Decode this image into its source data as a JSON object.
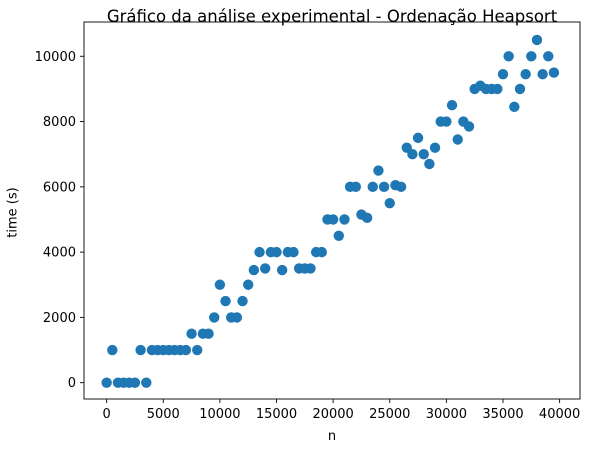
{
  "chart_data": {
    "type": "scatter",
    "title": "Gráfico da análise experimental - Ordenação Heapsort",
    "xlabel": "n",
    "ylabel": "time (s)",
    "xlim": [
      -2000,
      41800
    ],
    "ylim": [
      -500,
      11050
    ],
    "xticks": [
      0,
      5000,
      10000,
      15000,
      20000,
      25000,
      30000,
      35000,
      40000
    ],
    "yticks": [
      0,
      2000,
      4000,
      6000,
      8000,
      10000
    ],
    "grid": false,
    "color": "#1f77b4",
    "points": [
      [
        0,
        0
      ],
      [
        500,
        1000
      ],
      [
        1000,
        0
      ],
      [
        1500,
        0
      ],
      [
        2000,
        0
      ],
      [
        2500,
        0
      ],
      [
        3000,
        1000
      ],
      [
        3500,
        0
      ],
      [
        4000,
        1000
      ],
      [
        4500,
        1000
      ],
      [
        5000,
        1000
      ],
      [
        5500,
        1000
      ],
      [
        6000,
        1000
      ],
      [
        6500,
        1000
      ],
      [
        7000,
        1000
      ],
      [
        7500,
        1500
      ],
      [
        8000,
        1000
      ],
      [
        8500,
        1500
      ],
      [
        9000,
        1500
      ],
      [
        9500,
        2000
      ],
      [
        10000,
        3000
      ],
      [
        10500,
        2500
      ],
      [
        11000,
        2000
      ],
      [
        11500,
        2000
      ],
      [
        12000,
        2500
      ],
      [
        12500,
        3000
      ],
      [
        13000,
        3450
      ],
      [
        13500,
        4000
      ],
      [
        14000,
        3500
      ],
      [
        14500,
        4000
      ],
      [
        15000,
        4000
      ],
      [
        15500,
        3450
      ],
      [
        16000,
        4000
      ],
      [
        16500,
        4000
      ],
      [
        17000,
        3500
      ],
      [
        17500,
        3500
      ],
      [
        18000,
        3500
      ],
      [
        18500,
        4000
      ],
      [
        19000,
        4000
      ],
      [
        19500,
        5000
      ],
      [
        20000,
        5000
      ],
      [
        20500,
        4500
      ],
      [
        21000,
        5000
      ],
      [
        21500,
        6000
      ],
      [
        22000,
        6000
      ],
      [
        22500,
        5150
      ],
      [
        23000,
        5050
      ],
      [
        23500,
        6000
      ],
      [
        24000,
        6500
      ],
      [
        24500,
        6000
      ],
      [
        25000,
        5500
      ],
      [
        25500,
        6050
      ],
      [
        26000,
        6000
      ],
      [
        26500,
        7200
      ],
      [
        27000,
        7000
      ],
      [
        27500,
        7500
      ],
      [
        28000,
        7000
      ],
      [
        28500,
        6700
      ],
      [
        29000,
        7200
      ],
      [
        29500,
        8000
      ],
      [
        30000,
        8000
      ],
      [
        30500,
        8500
      ],
      [
        31000,
        7450
      ],
      [
        31500,
        8000
      ],
      [
        32000,
        7850
      ],
      [
        32500,
        9000
      ],
      [
        33000,
        9100
      ],
      [
        33500,
        9000
      ],
      [
        34000,
        9000
      ],
      [
        34500,
        9000
      ],
      [
        35000,
        9450
      ],
      [
        35500,
        10000
      ],
      [
        36000,
        8450
      ],
      [
        36500,
        9000
      ],
      [
        37000,
        9450
      ],
      [
        37500,
        10000
      ],
      [
        38000,
        10500
      ],
      [
        38500,
        9450
      ],
      [
        39000,
        10000
      ],
      [
        39500,
        9500
      ]
    ]
  }
}
